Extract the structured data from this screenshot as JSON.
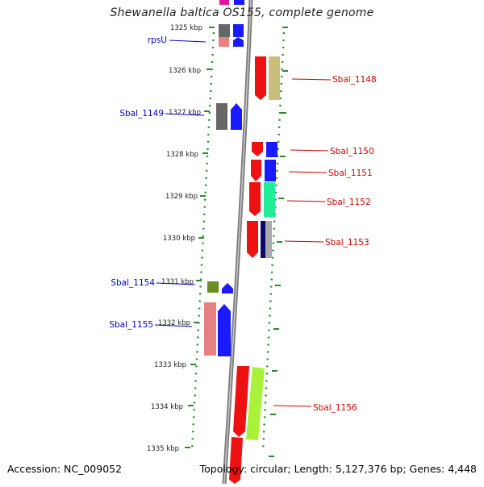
{
  "header": {
    "title": "Shewanella baltica OS155, complete genome"
  },
  "footer": {
    "accession": "Accession: NC_009052",
    "topology": "Topology: circular; Length: 5,127,376 bp; Genes: 4,448"
  },
  "ruler": {
    "unit": "kbp",
    "ticks": [
      "1325 kbp",
      "1326 kbp",
      "1327 kbp",
      "1328 kbp",
      "1329 kbp",
      "1330 kbp",
      "1331 kbp",
      "1332 kbp",
      "1333 kbp",
      "1334 kbp",
      "1335 kbp"
    ]
  },
  "gene_labels": {
    "left": [
      "rpsU",
      "Sbal_1149",
      "Sbal_1154",
      "Sbal_1155"
    ],
    "right": [
      "Sbal_1148",
      "Sbal_1150",
      "Sbal_1151",
      "Sbal_1152",
      "Sbal_1153",
      "Sbal_1156"
    ]
  },
  "colors": {
    "left_label": "#0000cc",
    "right_label": "#cc0000",
    "tick": "#2a8a2a",
    "axis": "#888888"
  }
}
